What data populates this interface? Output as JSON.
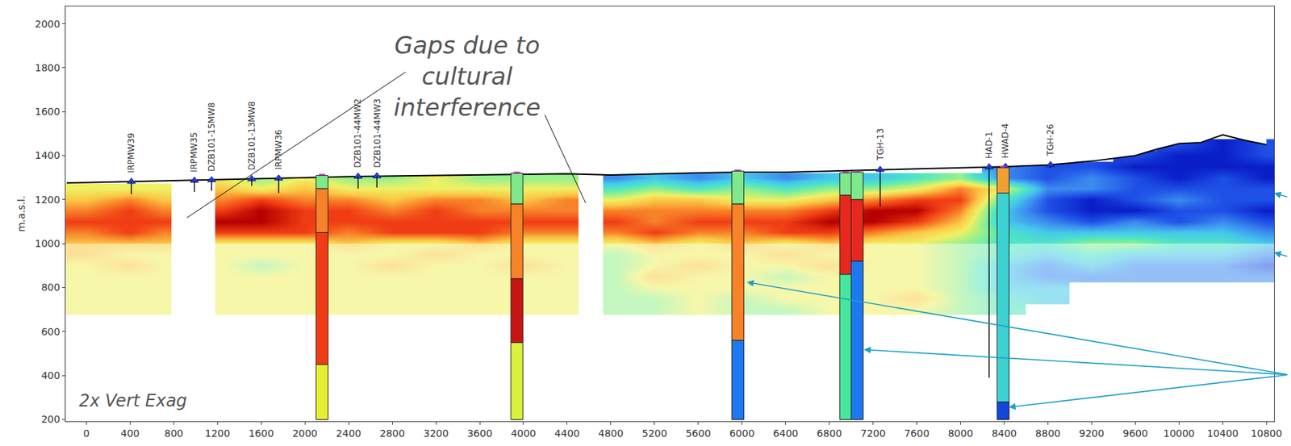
{
  "chart_data": {
    "type": "heatmap",
    "y_label": "m.a.s.l.",
    "xlim": [
      -190,
      10870
    ],
    "xticks": [
      0,
      400,
      800,
      1200,
      1600,
      2000,
      2400,
      2800,
      3200,
      3600,
      4000,
      4400,
      4800,
      5200,
      5600,
      6000,
      6400,
      6800,
      7200,
      7600,
      8000,
      8400,
      8800,
      9200,
      9600,
      10000,
      10400,
      10800
    ],
    "ylim": [
      192,
      2079
    ],
    "yticks": [
      200,
      400,
      600,
      800,
      1000,
      1200,
      1400,
      1600,
      1800,
      2000
    ],
    "grid": false,
    "zlim": [
      0,
      10
    ],
    "heatmap": {
      "x": [
        0,
        400,
        700,
        850,
        1100,
        1250,
        1600,
        2000,
        2400,
        2800,
        3200,
        3600,
        4000,
        4400,
        4600,
        4850,
        5200,
        5600,
        6000,
        6400,
        6800,
        7200,
        7600,
        8000,
        8400,
        8800,
        9200,
        9600,
        10000,
        10400,
        10800
      ],
      "y": [
        700,
        750,
        800,
        850,
        900,
        950,
        1000,
        1050,
        1100,
        1150,
        1200,
        1250,
        1300,
        1350,
        1400,
        1450
      ],
      "z": [
        [
          6,
          6,
          6,
          null,
          null,
          6,
          6,
          6,
          6,
          6,
          6,
          6,
          6,
          6,
          null,
          5,
          5,
          6,
          5,
          5,
          6,
          6,
          6,
          5,
          4,
          null,
          null,
          null,
          null,
          null,
          null
        ],
        [
          6,
          6,
          6,
          null,
          null,
          6,
          6,
          6,
          6,
          6,
          6,
          6,
          6,
          6,
          null,
          5,
          5,
          6,
          5,
          6,
          6,
          6,
          7,
          5,
          4,
          3,
          null,
          null,
          null,
          null,
          null
        ],
        [
          6,
          6,
          6,
          null,
          null,
          6,
          6,
          6,
          6,
          6,
          6,
          6,
          6,
          6,
          null,
          5,
          6,
          6,
          6,
          6,
          6,
          6,
          6,
          5,
          3,
          3,
          null,
          null,
          null,
          null,
          null
        ],
        [
          6,
          6,
          6,
          null,
          null,
          6,
          6,
          6,
          6,
          6,
          6,
          6,
          6,
          6,
          null,
          5,
          7,
          6,
          6,
          5,
          6,
          6,
          6,
          5,
          3,
          2,
          2,
          2,
          2,
          2,
          2
        ],
        [
          6,
          7,
          6,
          null,
          null,
          6,
          5,
          6,
          6,
          7,
          6,
          6,
          7,
          6,
          null,
          5,
          6,
          7,
          6,
          6,
          7,
          6,
          6,
          5,
          3,
          2,
          3,
          2,
          2,
          2,
          1
        ],
        [
          7,
          6,
          6,
          null,
          null,
          6,
          6,
          6,
          6,
          6,
          7,
          6,
          6,
          6,
          null,
          5,
          6,
          6,
          6,
          7,
          6,
          6,
          6,
          5,
          4,
          3,
          4,
          3,
          3,
          3,
          2
        ],
        [
          7,
          7,
          7,
          null,
          null,
          6,
          6,
          6,
          7,
          6,
          6,
          7,
          6,
          6,
          null,
          6,
          7,
          6,
          7,
          6,
          7,
          6,
          6,
          5,
          4,
          4,
          5,
          5,
          4,
          4,
          3
        ],
        [
          8,
          9,
          8,
          null,
          null,
          9,
          9,
          9,
          8,
          9,
          9,
          9,
          8,
          8,
          null,
          8,
          9,
          8,
          8,
          9,
          9,
          8,
          7,
          6,
          4,
          3,
          3,
          3,
          3,
          3,
          2
        ],
        [
          9,
          9,
          9,
          null,
          null,
          10,
          10,
          9,
          9,
          9,
          9,
          9,
          9,
          9,
          null,
          9,
          8,
          9,
          9,
          9,
          10,
          10,
          9,
          7,
          3,
          2,
          1,
          2,
          1,
          2,
          1
        ],
        [
          8,
          9,
          8,
          null,
          null,
          9,
          10,
          9,
          9,
          8,
          9,
          8,
          8,
          8,
          null,
          8,
          8,
          8,
          8,
          8,
          9,
          10,
          10,
          8,
          3,
          1,
          0,
          0,
          1,
          1,
          0
        ],
        [
          7,
          8,
          7,
          null,
          null,
          8,
          9,
          8,
          8,
          7,
          8,
          8,
          7,
          8,
          null,
          6,
          7,
          7,
          6,
          6,
          7,
          8,
          9,
          9,
          4,
          1,
          0,
          1,
          2,
          1,
          1
        ],
        [
          6,
          6,
          6,
          null,
          null,
          7,
          6,
          7,
          6,
          6,
          6,
          6,
          6,
          6,
          null,
          4,
          5,
          4,
          5,
          4,
          5,
          5,
          6,
          8,
          6,
          2,
          2,
          1,
          1,
          1,
          1
        ],
        [
          null,
          null,
          null,
          null,
          null,
          6,
          5,
          6,
          5,
          5,
          6,
          5,
          5,
          5,
          null,
          2,
          3,
          2,
          3,
          2,
          3,
          3,
          4,
          5,
          2,
          1,
          2,
          1,
          0,
          1,
          0
        ],
        [
          null,
          null,
          null,
          null,
          null,
          null,
          null,
          null,
          null,
          null,
          null,
          null,
          null,
          null,
          null,
          null,
          null,
          null,
          null,
          null,
          null,
          null,
          null,
          null,
          2,
          1,
          1,
          0,
          0,
          0,
          0
        ],
        [
          null,
          null,
          null,
          null,
          null,
          null,
          null,
          null,
          null,
          null,
          null,
          null,
          null,
          null,
          null,
          null,
          null,
          null,
          null,
          null,
          null,
          null,
          null,
          null,
          null,
          null,
          null,
          1,
          0,
          0,
          1
        ],
        [
          null,
          null,
          null,
          null,
          null,
          null,
          null,
          null,
          null,
          null,
          null,
          null,
          null,
          null,
          null,
          null,
          null,
          null,
          null,
          null,
          null,
          null,
          null,
          null,
          null,
          null,
          null,
          null,
          1,
          0,
          1
        ]
      ]
    },
    "surface": {
      "x": [
        -180,
        0,
        400,
        800,
        1200,
        1600,
        2000,
        2400,
        2800,
        3200,
        3600,
        4000,
        4400,
        4800,
        5200,
        5600,
        6000,
        6400,
        6800,
        7200,
        7600,
        8000,
        8400,
        8800,
        9200,
        9600,
        9800,
        10000,
        10200,
        10400,
        10600,
        10800
      ],
      "y": [
        1276,
        1278,
        1280,
        1285,
        1290,
        1295,
        1300,
        1305,
        1308,
        1310,
        1312,
        1315,
        1318,
        1312,
        1318,
        1322,
        1325,
        1325,
        1330,
        1335,
        1340,
        1345,
        1350,
        1358,
        1375,
        1400,
        1430,
        1455,
        1460,
        1495,
        1470,
        1450
      ]
    },
    "wells": [
      {
        "name": "IRPMW39",
        "x": 412,
        "top": 1282,
        "bottom": 1225
      },
      {
        "name": "IRPMW35",
        "x": 989,
        "top": 1287,
        "bottom": 1235
      },
      {
        "name": "DZB101-15MW8",
        "x": 1146,
        "top": 1289,
        "bottom": 1240
      },
      {
        "name": "DZB101-13MW8",
        "x": 1513,
        "top": 1294,
        "bottom": 1262
      },
      {
        "name": "IRPMW36",
        "x": 1760,
        "top": 1297,
        "bottom": 1230
      },
      {
        "name": "DZB101-44MW2",
        "x": 2487,
        "top": 1305,
        "bottom": 1250
      },
      {
        "name": "DZB101-44MW3",
        "x": 2659,
        "top": 1307,
        "bottom": 1255
      },
      {
        "name": "TGH-13",
        "x": 7265,
        "top": 1336,
        "bottom": 1170
      },
      {
        "name": "HAD-1",
        "x": 8262,
        "top": 1348,
        "bottom": 390
      },
      {
        "name": "HWAD-4",
        "x": 8412,
        "top": 1350,
        "bottom": 1340
      },
      {
        "name": "TGH-26",
        "x": 8824,
        "top": 1358,
        "bottom": 1345
      }
    ],
    "boreholes": [
      {
        "x": 2157,
        "intervals": [
          {
            "top": 1310,
            "bottom": 1250,
            "color": "#7de88c"
          },
          {
            "top": 1250,
            "bottom": 1050,
            "color": "#f88228"
          },
          {
            "top": 1050,
            "bottom": 450,
            "color": "#f03c14"
          },
          {
            "top": 450,
            "bottom": 200,
            "color": "#e6f032"
          }
        ]
      },
      {
        "x": 3940,
        "intervals": [
          {
            "top": 1320,
            "bottom": 1180,
            "color": "#7de88c"
          },
          {
            "top": 1180,
            "bottom": 840,
            "color": "#f88228"
          },
          {
            "top": 840,
            "bottom": 550,
            "color": "#c81414"
          },
          {
            "top": 550,
            "bottom": 200,
            "color": "#dcf03c"
          }
        ]
      },
      {
        "x": 5962,
        "intervals": [
          {
            "top": 1330,
            "bottom": 1180,
            "color": "#7de88c"
          },
          {
            "top": 1180,
            "bottom": 560,
            "color": "#f88228"
          },
          {
            "top": 560,
            "bottom": 200,
            "color": "#1e78f0"
          }
        ]
      },
      {
        "x": 6950,
        "intervals": [
          {
            "top": 1322,
            "bottom": 1220,
            "color": "#7de88c"
          },
          {
            "top": 1220,
            "bottom": 860,
            "color": "#e6281e"
          },
          {
            "top": 860,
            "bottom": 200,
            "color": "#46e69b"
          }
        ]
      },
      {
        "x": 7055,
        "intervals": [
          {
            "top": 1325,
            "bottom": 1200,
            "color": "#7de88c"
          },
          {
            "top": 1200,
            "bottom": 920,
            "color": "#e6281e"
          },
          {
            "top": 920,
            "bottom": 200,
            "color": "#1e78f0"
          }
        ]
      },
      {
        "x": 8390,
        "intervals": [
          {
            "top": 1345,
            "bottom": 1230,
            "color": "#f0a030"
          },
          {
            "top": 1230,
            "bottom": 280,
            "color": "#3cd2d2"
          },
          {
            "top": 280,
            "bottom": 200,
            "color": "#1446dc"
          }
        ]
      }
    ],
    "annotations": [
      {
        "text": [
          "Gaps due to",
          "cultural",
          "interference"
        ]
      },
      {
        "text": "2x Vert Exag"
      }
    ]
  }
}
